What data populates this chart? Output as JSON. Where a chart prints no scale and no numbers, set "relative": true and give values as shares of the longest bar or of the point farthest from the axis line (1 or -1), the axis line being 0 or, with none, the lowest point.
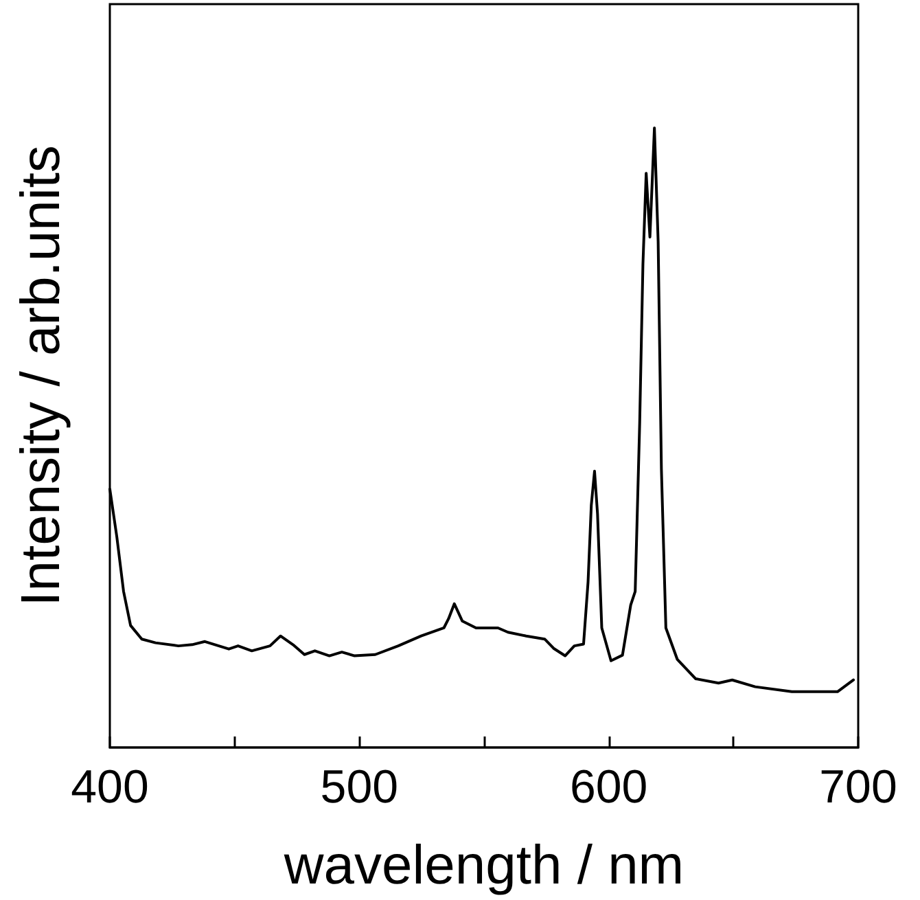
{
  "chart_data": {
    "type": "line",
    "xlabel": "wavelength / nm",
    "ylabel": "Intensity / arb.units",
    "relative": true,
    "xlim": [
      400,
      700
    ],
    "xticks": [
      400,
      {
        "value": 450,
        "label": null
      },
      500,
      {
        "value": 550,
        "label": null
      },
      600,
      {
        "value": 650,
        "label": null
      },
      700
    ],
    "grid": false,
    "marker": "none",
    "line_style": "solid",
    "x": [
      400,
      402.8,
      405.5,
      408.3,
      412.8,
      418.3,
      427.5,
      433,
      438.1,
      447.7,
      451.4,
      456.9,
      464.2,
      468.4,
      473.4,
      478,
      482.2,
      488,
      493,
      498.1,
      506.4,
      515.6,
      524.8,
      533.9,
      535.8,
      538.1,
      541.3,
      546.8,
      555.6,
      559.6,
      566.9,
      574.3,
      577.9,
      582.5,
      586.2,
      589.9,
      591.7,
      593,
      594.3,
      595.5,
      597.2,
      600.9,
      605.5,
      608.8,
      610.6,
      612.4,
      613.7,
      615,
      616.5,
      618.3,
      619.8,
      621.1,
      622.9,
      627.5,
      634.8,
      644,
      649.5,
      658.7,
      673.4,
      691.7,
      695.4,
      698.1
    ],
    "series": [
      {
        "color": "#000000",
        "values": [
          0.417,
          0.34,
          0.252,
          0.197,
          0.175,
          0.169,
          0.164,
          0.166,
          0.171,
          0.159,
          0.164,
          0.156,
          0.164,
          0.18,
          0.166,
          0.15,
          0.156,
          0.148,
          0.154,
          0.148,
          0.15,
          0.164,
          0.18,
          0.193,
          0.208,
          0.232,
          0.204,
          0.193,
          0.193,
          0.186,
          0.18,
          0.175,
          0.16,
          0.148,
          0.164,
          0.167,
          0.267,
          0.391,
          0.446,
          0.377,
          0.193,
          0.14,
          0.149,
          0.23,
          0.252,
          0.524,
          0.78,
          0.927,
          0.824,
          1,
          0.817,
          0.45,
          0.193,
          0.142,
          0.111,
          0.104,
          0.109,
          0.098,
          0.09,
          0.09,
          0.101,
          0.109
        ]
      }
    ]
  }
}
